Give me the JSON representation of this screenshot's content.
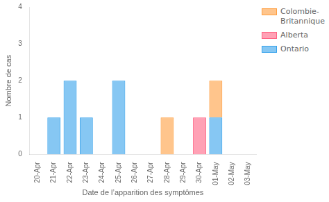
{
  "chart_data": {
    "type": "bar",
    "stacked": true,
    "xlabel": "Date de l’apparition des symptômes",
    "ylabel": "Nombre de cas",
    "categories": [
      "20-Apr",
      "21-Apr",
      "22-Apr",
      "23-Apr",
      "24-Apr",
      "25-Apr",
      "26-Apr",
      "27-Apr",
      "28-Apr",
      "29-Apr",
      "30-Apr",
      "01-May",
      "02-May",
      "03-May"
    ],
    "series": [
      {
        "name": "Ontario",
        "values": [
          0,
          1,
          2,
          1,
          0,
          2,
          0,
          0,
          0,
          0,
          0,
          1,
          0,
          0
        ]
      },
      {
        "name": "Alberta",
        "values": [
          0,
          0,
          0,
          0,
          0,
          0,
          0,
          0,
          0,
          0,
          1,
          0,
          0,
          0
        ]
      },
      {
        "name": "Colombie-\nBritannique",
        "values": [
          0,
          0,
          0,
          0,
          0,
          0,
          0,
          0,
          1,
          0,
          0,
          1,
          0,
          0
        ]
      }
    ],
    "ylim": [
      0,
      4
    ],
    "yticks": [
      0,
      1,
      2,
      3,
      4
    ],
    "grid": false,
    "legend": "upper right"
  }
}
